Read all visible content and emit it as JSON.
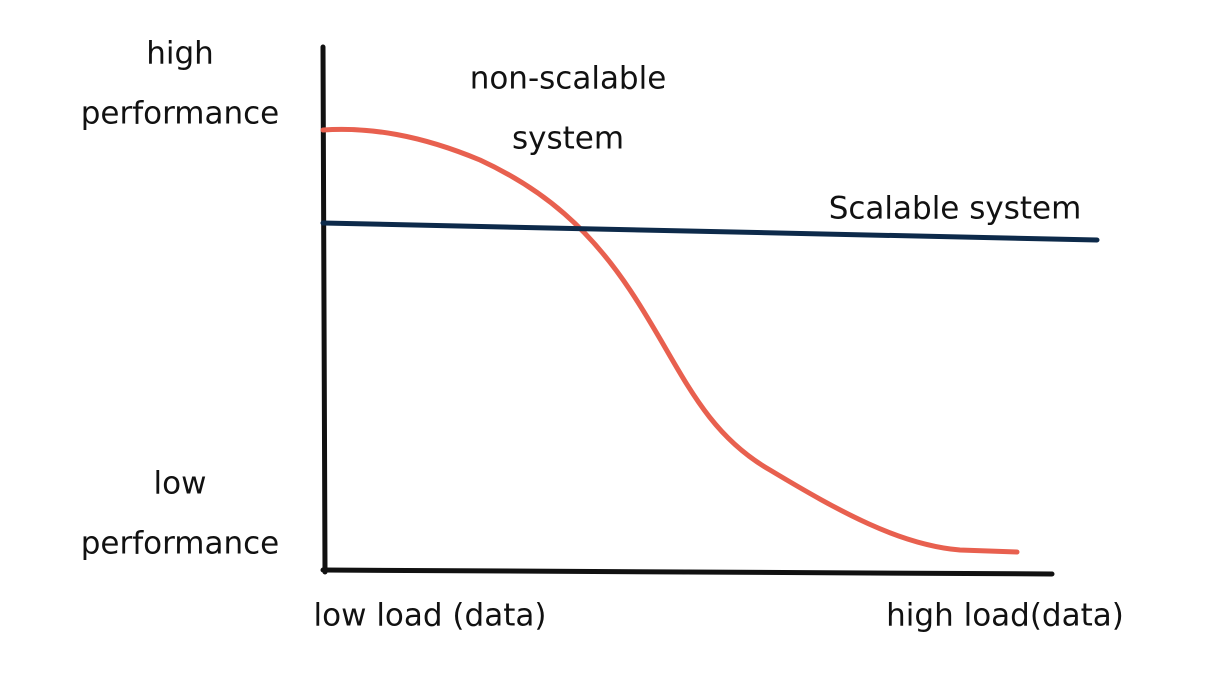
{
  "y_axis": {
    "high_label": [
      "high",
      "performance"
    ],
    "low_label": [
      "low",
      "performance"
    ]
  },
  "x_axis": {
    "low_label": "low load (data)",
    "high_label": "high load(data)"
  },
  "curves": [
    {
      "label": [
        "non-scalable",
        "system"
      ]
    },
    {
      "label": [
        "Scalable system"
      ]
    }
  ]
}
